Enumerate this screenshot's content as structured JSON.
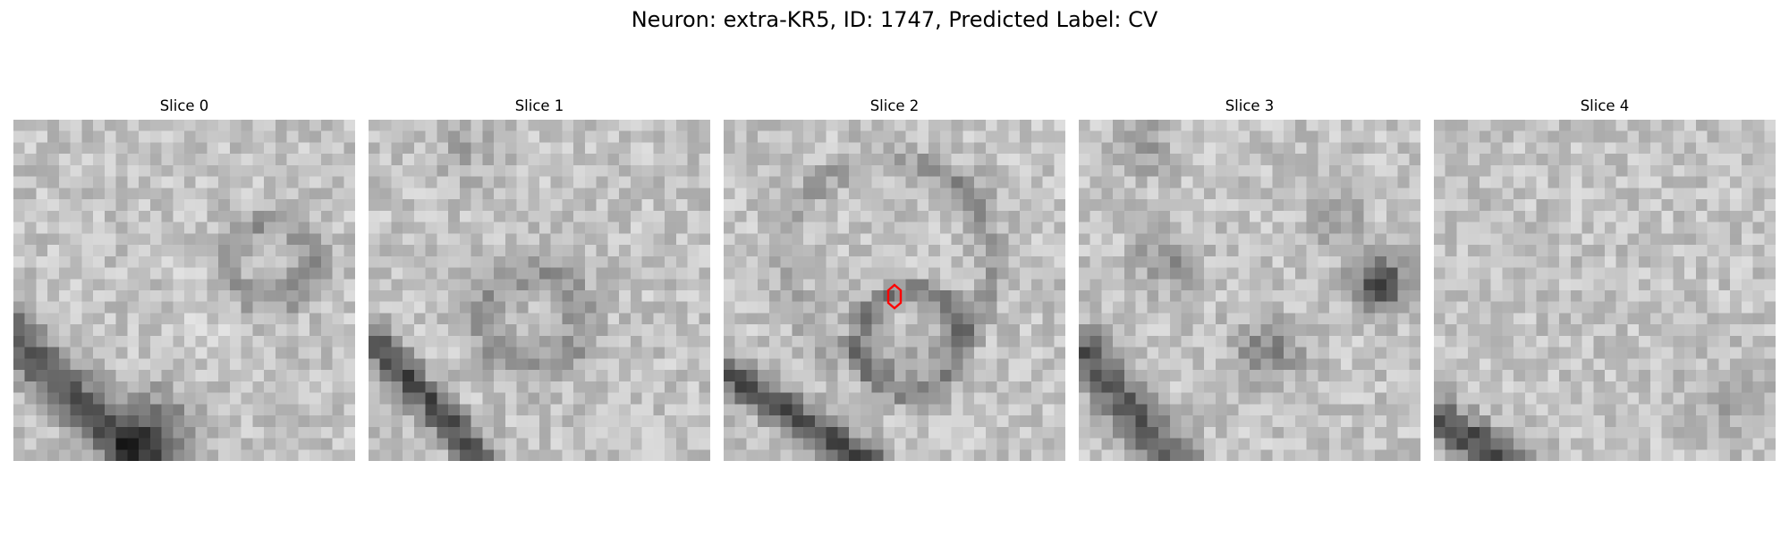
{
  "figure": {
    "title": "Neuron: extra-KR5, ID: 1747, Predicted Label: CV"
  },
  "slices": [
    {
      "title": "Slice 0",
      "seed": 11
    },
    {
      "title": "Slice 1",
      "seed": 23
    },
    {
      "title": "Slice 2",
      "seed": 37,
      "marker": true
    },
    {
      "title": "Slice 3",
      "seed": 41
    },
    {
      "title": "Slice 4",
      "seed": 53
    }
  ],
  "colors": {
    "colormap": "gray",
    "marker": "#ff0000"
  }
}
